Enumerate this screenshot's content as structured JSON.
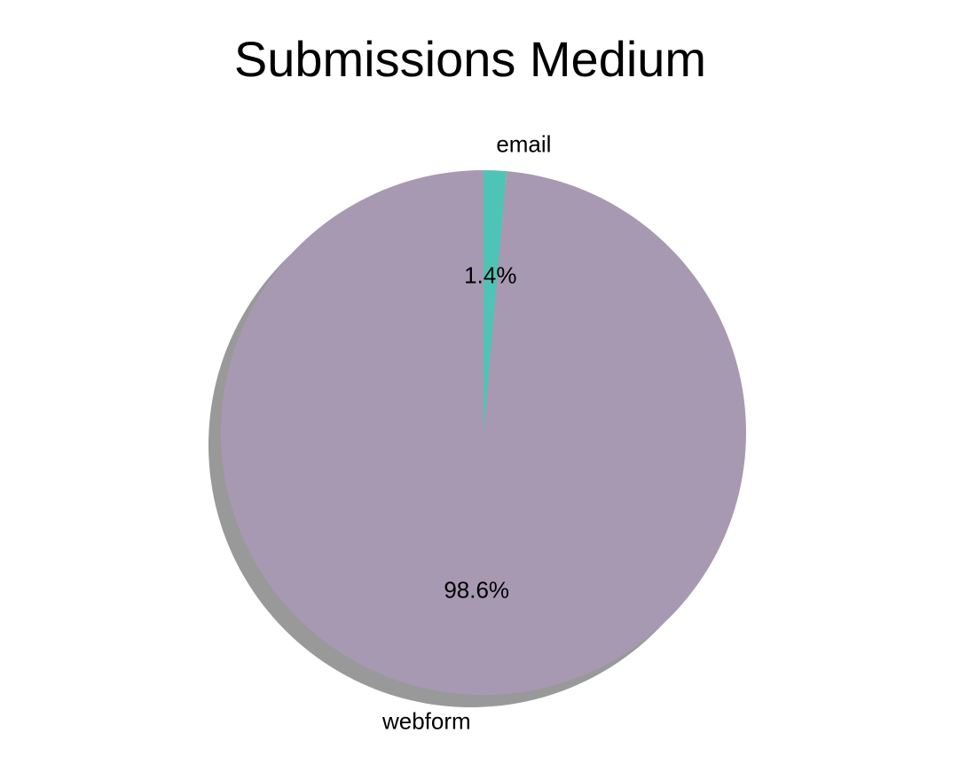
{
  "chart_data": {
    "type": "pie",
    "title": "Submissions Medium",
    "shadow": true,
    "start_angle_deg": 90,
    "direction": "counterclockwise",
    "slices": [
      {
        "label": "webform",
        "value": 98.6,
        "pct_label": "98.6%",
        "color": "#a899b2"
      },
      {
        "label": "email",
        "value": 1.4,
        "pct_label": "1.4%",
        "color": "#4fc4b6"
      }
    ]
  }
}
